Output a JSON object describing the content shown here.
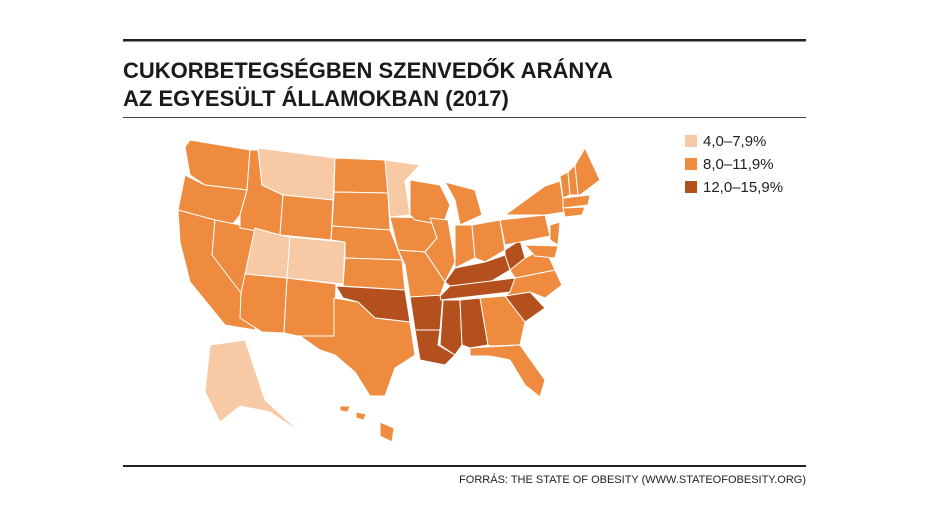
{
  "title": [
    "CUKORBETEGSÉGBEN SZENVEDŐK ARÁNYA",
    "AZ EGYESÜLT ÁLLAMOKBAN (2017)"
  ],
  "legend": [
    {
      "label": "4,0–7,9%",
      "color": "#f7c9a5"
    },
    {
      "label": "8,0–11,9%",
      "color": "#ee8b3e"
    },
    {
      "label": "12,0–15,9%",
      "color": "#b4501d"
    }
  ],
  "map": {
    "region_classes": [
      1,
      1,
      1,
      1,
      1,
      0,
      1,
      0,
      0,
      1,
      1,
      1,
      1,
      1,
      1,
      2,
      1,
      0,
      1,
      1,
      2,
      2,
      1,
      1,
      1,
      1,
      1,
      2,
      2,
      2,
      2,
      1,
      1,
      2,
      1,
      1,
      2,
      1,
      1,
      1,
      1,
      1,
      1,
      1,
      1,
      1,
      0,
      1,
      1,
      1
    ]
  },
  "source": "FORRÁS: THE STATE OF OBESITY (WWW.STATEOFOBESITY.ORG)"
}
